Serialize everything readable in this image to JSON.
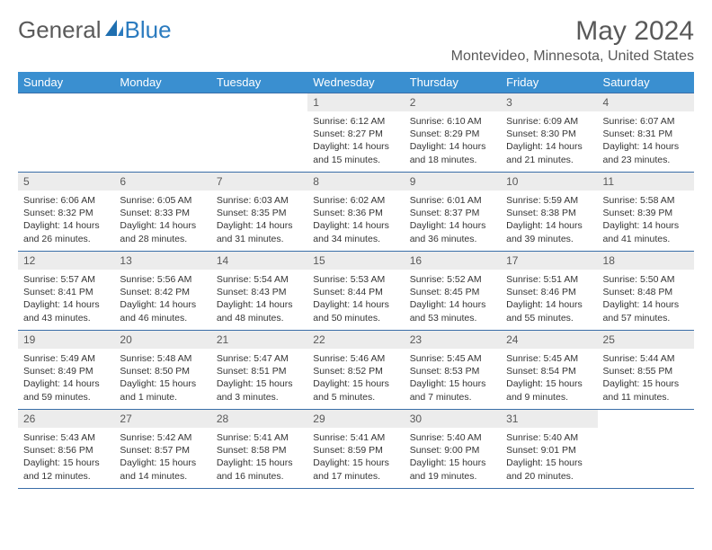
{
  "logo": {
    "text1": "General",
    "text2": "Blue",
    "color1": "#5a5a5a",
    "color2": "#2b7bbf"
  },
  "title": "May 2024",
  "location": "Montevideo, Minnesota, United States",
  "styling": {
    "header_bg": "#3a8fd0",
    "header_fg": "#ffffff",
    "daynum_bg": "#ececec",
    "daynum_fg": "#595959",
    "body_fg": "#353535",
    "border_color": "#3a6ea8",
    "title_fontsize": 30,
    "location_fontsize": 16,
    "header_fontsize": 13,
    "daynum_fontsize": 12,
    "body_fontsize": 10.5
  },
  "columns": [
    "Sunday",
    "Monday",
    "Tuesday",
    "Wednesday",
    "Thursday",
    "Friday",
    "Saturday"
  ],
  "weeks": [
    [
      {
        "empty": true
      },
      {
        "empty": true
      },
      {
        "empty": true
      },
      {
        "day": "1",
        "sunrise": "6:12 AM",
        "sunset": "8:27 PM",
        "daylight": "14 hours and 15 minutes."
      },
      {
        "day": "2",
        "sunrise": "6:10 AM",
        "sunset": "8:29 PM",
        "daylight": "14 hours and 18 minutes."
      },
      {
        "day": "3",
        "sunrise": "6:09 AM",
        "sunset": "8:30 PM",
        "daylight": "14 hours and 21 minutes."
      },
      {
        "day": "4",
        "sunrise": "6:07 AM",
        "sunset": "8:31 PM",
        "daylight": "14 hours and 23 minutes."
      }
    ],
    [
      {
        "day": "5",
        "sunrise": "6:06 AM",
        "sunset": "8:32 PM",
        "daylight": "14 hours and 26 minutes."
      },
      {
        "day": "6",
        "sunrise": "6:05 AM",
        "sunset": "8:33 PM",
        "daylight": "14 hours and 28 minutes."
      },
      {
        "day": "7",
        "sunrise": "6:03 AM",
        "sunset": "8:35 PM",
        "daylight": "14 hours and 31 minutes."
      },
      {
        "day": "8",
        "sunrise": "6:02 AM",
        "sunset": "8:36 PM",
        "daylight": "14 hours and 34 minutes."
      },
      {
        "day": "9",
        "sunrise": "6:01 AM",
        "sunset": "8:37 PM",
        "daylight": "14 hours and 36 minutes."
      },
      {
        "day": "10",
        "sunrise": "5:59 AM",
        "sunset": "8:38 PM",
        "daylight": "14 hours and 39 minutes."
      },
      {
        "day": "11",
        "sunrise": "5:58 AM",
        "sunset": "8:39 PM",
        "daylight": "14 hours and 41 minutes."
      }
    ],
    [
      {
        "day": "12",
        "sunrise": "5:57 AM",
        "sunset": "8:41 PM",
        "daylight": "14 hours and 43 minutes."
      },
      {
        "day": "13",
        "sunrise": "5:56 AM",
        "sunset": "8:42 PM",
        "daylight": "14 hours and 46 minutes."
      },
      {
        "day": "14",
        "sunrise": "5:54 AM",
        "sunset": "8:43 PM",
        "daylight": "14 hours and 48 minutes."
      },
      {
        "day": "15",
        "sunrise": "5:53 AM",
        "sunset": "8:44 PM",
        "daylight": "14 hours and 50 minutes."
      },
      {
        "day": "16",
        "sunrise": "5:52 AM",
        "sunset": "8:45 PM",
        "daylight": "14 hours and 53 minutes."
      },
      {
        "day": "17",
        "sunrise": "5:51 AM",
        "sunset": "8:46 PM",
        "daylight": "14 hours and 55 minutes."
      },
      {
        "day": "18",
        "sunrise": "5:50 AM",
        "sunset": "8:48 PM",
        "daylight": "14 hours and 57 minutes."
      }
    ],
    [
      {
        "day": "19",
        "sunrise": "5:49 AM",
        "sunset": "8:49 PM",
        "daylight": "14 hours and 59 minutes."
      },
      {
        "day": "20",
        "sunrise": "5:48 AM",
        "sunset": "8:50 PM",
        "daylight": "15 hours and 1 minute."
      },
      {
        "day": "21",
        "sunrise": "5:47 AM",
        "sunset": "8:51 PM",
        "daylight": "15 hours and 3 minutes."
      },
      {
        "day": "22",
        "sunrise": "5:46 AM",
        "sunset": "8:52 PM",
        "daylight": "15 hours and 5 minutes."
      },
      {
        "day": "23",
        "sunrise": "5:45 AM",
        "sunset": "8:53 PM",
        "daylight": "15 hours and 7 minutes."
      },
      {
        "day": "24",
        "sunrise": "5:45 AM",
        "sunset": "8:54 PM",
        "daylight": "15 hours and 9 minutes."
      },
      {
        "day": "25",
        "sunrise": "5:44 AM",
        "sunset": "8:55 PM",
        "daylight": "15 hours and 11 minutes."
      }
    ],
    [
      {
        "day": "26",
        "sunrise": "5:43 AM",
        "sunset": "8:56 PM",
        "daylight": "15 hours and 12 minutes."
      },
      {
        "day": "27",
        "sunrise": "5:42 AM",
        "sunset": "8:57 PM",
        "daylight": "15 hours and 14 minutes."
      },
      {
        "day": "28",
        "sunrise": "5:41 AM",
        "sunset": "8:58 PM",
        "daylight": "15 hours and 16 minutes."
      },
      {
        "day": "29",
        "sunrise": "5:41 AM",
        "sunset": "8:59 PM",
        "daylight": "15 hours and 17 minutes."
      },
      {
        "day": "30",
        "sunrise": "5:40 AM",
        "sunset": "9:00 PM",
        "daylight": "15 hours and 19 minutes."
      },
      {
        "day": "31",
        "sunrise": "5:40 AM",
        "sunset": "9:01 PM",
        "daylight": "15 hours and 20 minutes."
      },
      {
        "empty": true
      }
    ]
  ]
}
